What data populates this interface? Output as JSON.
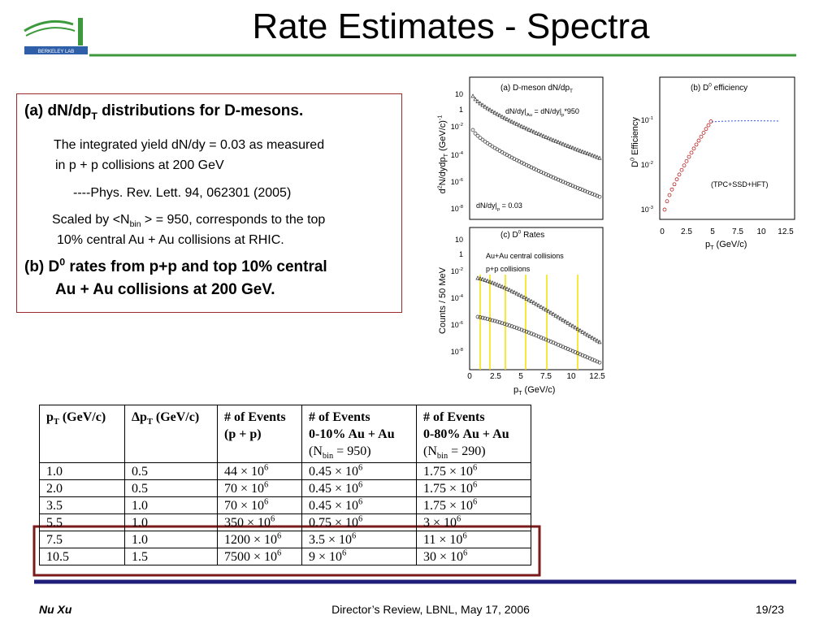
{
  "logo": {
    "text": "BERKELEY LAB"
  },
  "title": "Rate Estimates - Spectra",
  "textbox": {
    "paragraphs": [
      [
        [
          "(a)  dN/dp",
          {
            "sub": "T"
          },
          " distributions for D-mesons."
        ]
      ],
      [
        [
          "The integrated yield dN/dy = 0.03 as measured"
        ],
        [
          "in p + p collisions at 200 GeV"
        ]
      ],
      [
        [
          "----Phys. Rev. Lett. 94, 062301 (2005)"
        ]
      ],
      [
        [
          "Scaled by <N",
          {
            "sub": "bin"
          },
          " > = 950, corresponds to the top"
        ],
        [
          "10% central Au + Au collisions at RHIC."
        ]
      ],
      [
        [
          "(b) D",
          {
            "sup": "0"
          },
          " rates from p+p and top 10% central"
        ],
        [
          "Au + Au collisions at 200 GeV."
        ]
      ]
    ]
  },
  "plots": [
    {
      "title": [
        "(a) D-meson dN/dp",
        {
          "sub": "T"
        }
      ],
      "notes": [
        [
          "dN/dy|",
          {
            "sub": "Au"
          },
          " = dN/dy|",
          {
            "sub": "p"
          },
          "*950"
        ],
        [
          "dN/dy|",
          {
            "sub": "p"
          },
          " = 0.03"
        ]
      ],
      "ylabel": [
        "d",
        {
          "sup": "2"
        },
        "N/dydp",
        {
          "sub": "T"
        },
        " (GeV/c)",
        {
          "sup": "-1"
        }
      ],
      "yticks": [
        [
          "10"
        ],
        [
          "1"
        ],
        [
          "10",
          {
            "sup": "-2"
          }
        ],
        [
          "10",
          {
            "sup": "-4"
          }
        ],
        [
          "10",
          {
            "sup": "-6"
          }
        ],
        [
          "10",
          {
            "sup": "-8"
          }
        ]
      ]
    },
    {
      "title": [
        "(b) D",
        {
          "sup": "0"
        },
        " efficiency"
      ],
      "notes": [
        [
          "(TPC+SSD+HFT)"
        ]
      ],
      "ylabel": [
        "D",
        {
          "sup": "0"
        },
        " Efficiency"
      ],
      "yticks": [
        [
          "10",
          {
            "sup": "-1"
          }
        ],
        [
          "10",
          {
            "sup": "-2"
          }
        ],
        [
          "10",
          {
            "sup": "-3"
          }
        ]
      ],
      "xticks": [
        "0",
        "2.5",
        "5",
        "7.5",
        "10",
        "12.5"
      ],
      "xlabel": [
        "p",
        {
          "sub": "T"
        },
        " (GeV/c)"
      ]
    },
    {
      "title": [
        "(c) D",
        {
          "sup": "0"
        },
        " Rates"
      ],
      "notes": [
        [
          "Au+Au central collisions"
        ],
        [
          "p+p collisions"
        ]
      ],
      "ylabel": [
        "Counts / 50 MeV"
      ],
      "yticks": [
        [
          "10"
        ],
        [
          "1"
        ],
        [
          "10",
          {
            "sup": "-2"
          }
        ],
        [
          "10",
          {
            "sup": "-4"
          }
        ],
        [
          "10",
          {
            "sup": "-6"
          }
        ],
        [
          "10",
          {
            "sup": "-8"
          }
        ]
      ],
      "xticks": [
        "0",
        "2.5",
        "5",
        "7.5",
        "10",
        "12.5"
      ],
      "xlabel": [
        "p",
        {
          "sub": "T"
        },
        " (GeV/c)"
      ]
    }
  ],
  "table": {
    "header": [
      [
        [
          "p",
          {
            "sub": "T"
          },
          " (GeV/c)"
        ]
      ],
      [
        [
          "Δp",
          {
            "sub": "T"
          },
          " (GeV/c)"
        ]
      ],
      [
        [
          "# of Events"
        ],
        [
          "(p + p)"
        ]
      ],
      [
        [
          "# of Events"
        ],
        [
          "0-10% Au + Au"
        ],
        [
          "(N",
          {
            "sub": "bin"
          },
          " = 950)"
        ]
      ],
      [
        [
          "# of Events"
        ],
        [
          "0-80% Au + Au"
        ],
        [
          "(N",
          {
            "sub": "bin"
          },
          " = 290)"
        ]
      ]
    ],
    "rows": [
      [
        [
          "1.0"
        ],
        [
          "0.5"
        ],
        [
          "44 × 10",
          {
            "sup": "6"
          }
        ],
        [
          "0.45 × 10",
          {
            "sup": "6"
          }
        ],
        [
          "1.75 × 10",
          {
            "sup": "6"
          }
        ]
      ],
      [
        [
          "2.0"
        ],
        [
          "0.5"
        ],
        [
          "70 × 10",
          {
            "sup": "6"
          }
        ],
        [
          "0.45 × 10",
          {
            "sup": "6"
          }
        ],
        [
          "1.75 × 10",
          {
            "sup": "6"
          }
        ]
      ],
      [
        [
          "3.5"
        ],
        [
          "1.0"
        ],
        [
          "70 × 10",
          {
            "sup": "6"
          }
        ],
        [
          "0.45 × 10",
          {
            "sup": "6"
          }
        ],
        [
          "1.75 × 10",
          {
            "sup": "6"
          }
        ]
      ],
      [
        [
          "5.5"
        ],
        [
          "1.0"
        ],
        [
          "350 × 10",
          {
            "sup": "6"
          }
        ],
        [
          "0.75 × 10",
          {
            "sup": "6"
          }
        ],
        [
          "3 × 10",
          {
            "sup": "6"
          }
        ]
      ],
      [
        [
          "7.5"
        ],
        [
          "1.0"
        ],
        [
          "1200 × 10",
          {
            "sup": "6"
          }
        ],
        [
          "3.5 × 10",
          {
            "sup": "6"
          }
        ],
        [
          "11 × 10",
          {
            "sup": "6"
          }
        ]
      ],
      [
        [
          "10.5"
        ],
        [
          "1.5"
        ],
        [
          "7500 × 10",
          {
            "sup": "6"
          }
        ],
        [
          "9 × 10",
          {
            "sup": "6"
          }
        ],
        [
          "30 × 10",
          {
            "sup": "6"
          }
        ]
      ]
    ]
  },
  "footer": {
    "left": "Nu Xu",
    "center": "Director’s Review, LBNL, May 17,  2006",
    "right": "19/23"
  }
}
